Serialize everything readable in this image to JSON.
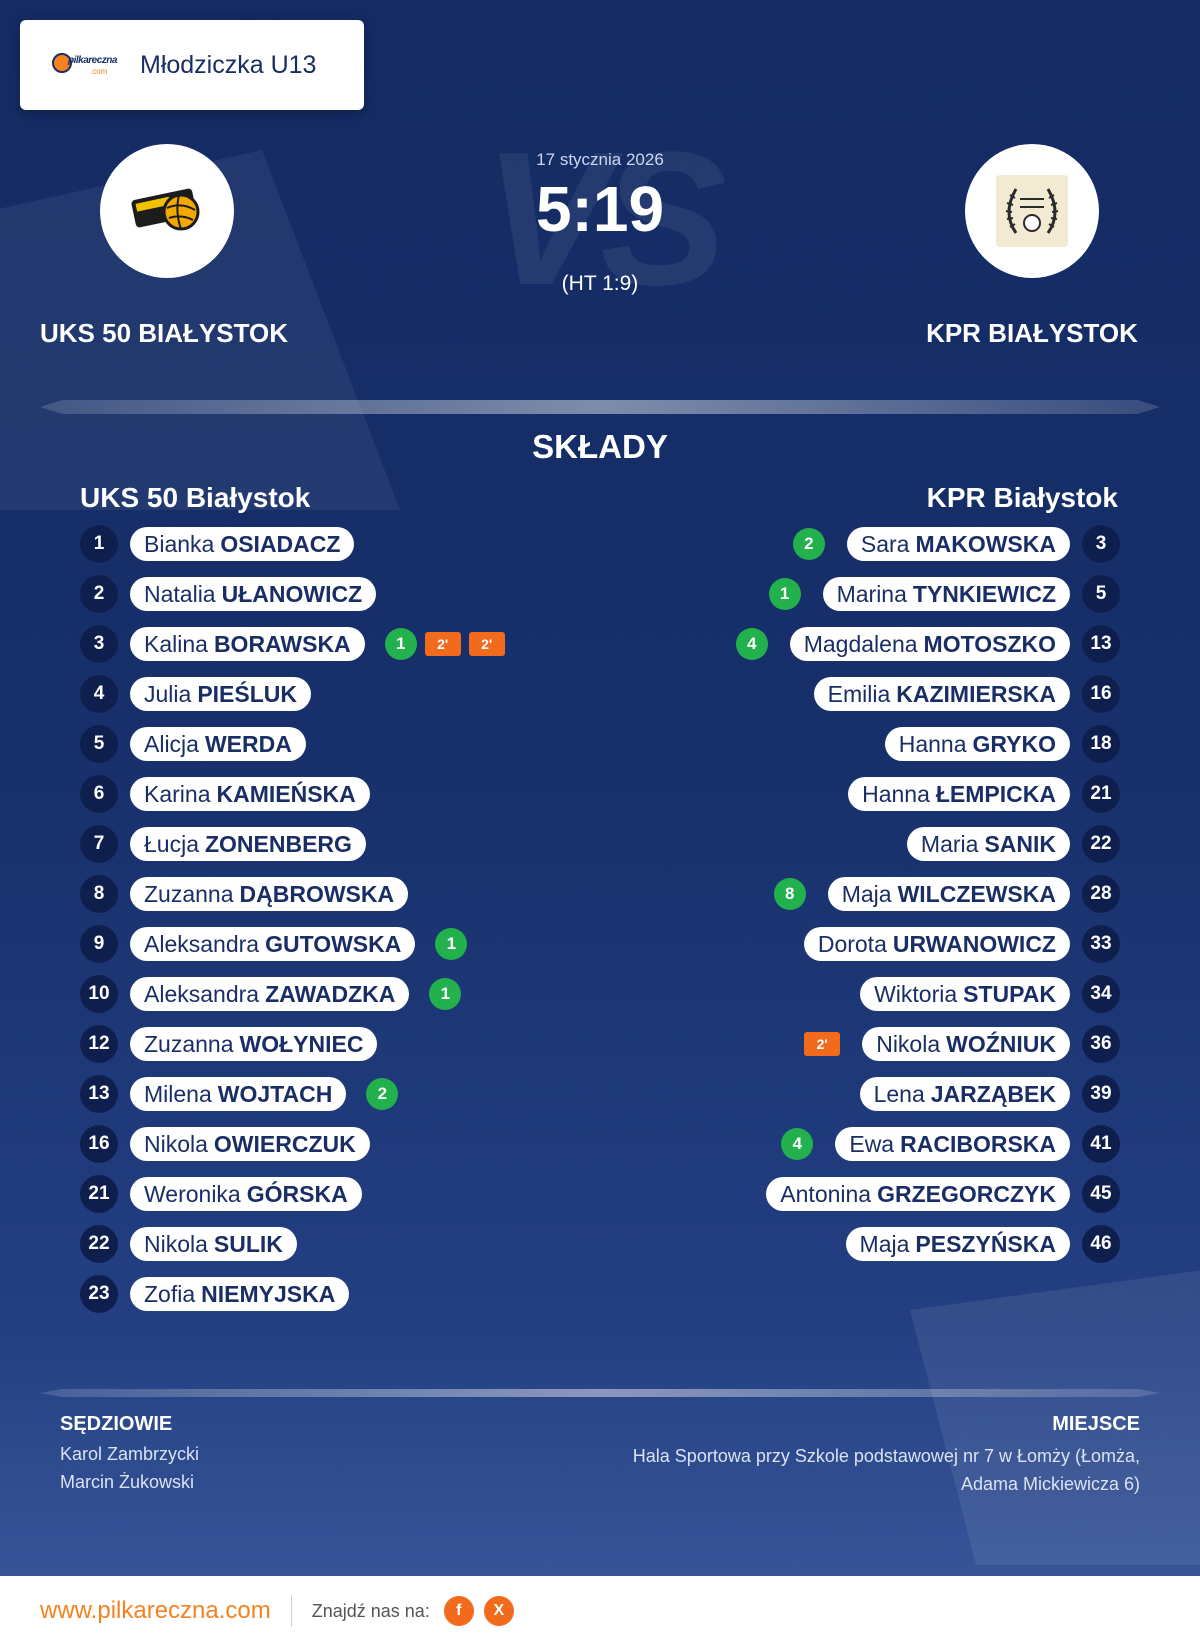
{
  "league": {
    "name": "Młodziczka U13",
    "logo_text": "pilkareczna",
    "logo_sub": ".com"
  },
  "match": {
    "date": "17 stycznia 2026",
    "score": "5:19",
    "halftime": "(HT 1:9)",
    "vs_text": "VS",
    "home_name": "UKS 50 BIAŁYSTOK",
    "away_name": "KPR BIAŁYSTOK"
  },
  "lineups": {
    "title": "SKŁADY",
    "home_title": "UKS 50 Białystok",
    "away_title": "KPR Białystok",
    "home": [
      {
        "number": "1",
        "first": "Bianka",
        "last": "OSIADACZ",
        "goals": "",
        "suspensions": []
      },
      {
        "number": "2",
        "first": "Natalia",
        "last": "UŁANOWICZ",
        "goals": "",
        "suspensions": []
      },
      {
        "number": "3",
        "first": "Kalina",
        "last": "BORAWSKA",
        "goals": "1",
        "suspensions": [
          "2'",
          "2'"
        ]
      },
      {
        "number": "4",
        "first": "Julia",
        "last": "PIEŚLUK",
        "goals": "",
        "suspensions": []
      },
      {
        "number": "5",
        "first": "Alicja",
        "last": "WERDA",
        "goals": "",
        "suspensions": []
      },
      {
        "number": "6",
        "first": "Karina",
        "last": "KAMIEŃSKA",
        "goals": "",
        "suspensions": []
      },
      {
        "number": "7",
        "first": "Łucja",
        "last": "ZONENBERG",
        "goals": "",
        "suspensions": []
      },
      {
        "number": "8",
        "first": "Zuzanna",
        "last": "DĄBROWSKA",
        "goals": "",
        "suspensions": []
      },
      {
        "number": "9",
        "first": "Aleksandra",
        "last": "GUTOWSKA",
        "goals": "1",
        "suspensions": []
      },
      {
        "number": "10",
        "first": "Aleksandra",
        "last": "ZAWADZKA",
        "goals": "1",
        "suspensions": []
      },
      {
        "number": "12",
        "first": "Zuzanna",
        "last": "WOŁYNIEC",
        "goals": "",
        "suspensions": []
      },
      {
        "number": "13",
        "first": "Milena",
        "last": "WOJTACH",
        "goals": "2",
        "suspensions": []
      },
      {
        "number": "16",
        "first": "Nikola",
        "last": "OWIERCZUK",
        "goals": "",
        "suspensions": []
      },
      {
        "number": "21",
        "first": "Weronika",
        "last": "GÓRSKA",
        "goals": "",
        "suspensions": []
      },
      {
        "number": "22",
        "first": "Nikola",
        "last": "SULIK",
        "goals": "",
        "suspensions": []
      },
      {
        "number": "23",
        "first": "Zofia",
        "last": "NIEMYJSKA",
        "goals": "",
        "suspensions": []
      }
    ],
    "away": [
      {
        "number": "3",
        "first": "Sara",
        "last": "MAKOWSKA",
        "goals": "2",
        "suspensions": []
      },
      {
        "number": "5",
        "first": "Marina",
        "last": "TYNKIEWICZ",
        "goals": "1",
        "suspensions": []
      },
      {
        "number": "13",
        "first": "Magdalena",
        "last": "MOTOSZKO",
        "goals": "4",
        "suspensions": []
      },
      {
        "number": "16",
        "first": "Emilia",
        "last": "KAZIMIERSKA",
        "goals": "",
        "suspensions": []
      },
      {
        "number": "18",
        "first": "Hanna",
        "last": "GRYKO",
        "goals": "",
        "suspensions": []
      },
      {
        "number": "21",
        "first": "Hanna",
        "last": "ŁEMPICKA",
        "goals": "",
        "suspensions": []
      },
      {
        "number": "22",
        "first": "Maria",
        "last": "SANIK",
        "goals": "",
        "suspensions": []
      },
      {
        "number": "28",
        "first": "Maja",
        "last": "WILCZEWSKA",
        "goals": "8",
        "suspensions": []
      },
      {
        "number": "33",
        "first": "Dorota",
        "last": "URWANOWICZ",
        "goals": "",
        "suspensions": []
      },
      {
        "number": "34",
        "first": "Wiktoria",
        "last": "STUPAK",
        "goals": "",
        "suspensions": []
      },
      {
        "number": "36",
        "first": "Nikola",
        "last": "WOŹNIUK",
        "goals": "",
        "suspensions": [
          "2'"
        ]
      },
      {
        "number": "39",
        "first": "Lena",
        "last": "JARZĄBEK",
        "goals": "",
        "suspensions": []
      },
      {
        "number": "41",
        "first": "Ewa",
        "last": "RACIBORSKA",
        "goals": "4",
        "suspensions": []
      },
      {
        "number": "45",
        "first": "Antonina",
        "last": "GRZEGORCZYK",
        "goals": "",
        "suspensions": []
      },
      {
        "number": "46",
        "first": "Maja",
        "last": "PESZYŃSKA",
        "goals": "",
        "suspensions": []
      }
    ]
  },
  "officials": {
    "referees_title": "SĘDZIOWIE",
    "referees": [
      "Karol Zambrzycki",
      "Marcin Żukowski"
    ],
    "venue_title": "MIEJSCE",
    "venue_line1": "Hala Sportowa przy Szkole podstawowej nr 7 w Łomży (Łomża,",
    "venue_line2": "Adama Mickiewicza 6)"
  },
  "footer": {
    "url": "www.pilkareczna.com",
    "find_us": "Znajdź nas na:",
    "social": [
      {
        "icon": "facebook-icon",
        "glyph": "f"
      },
      {
        "icon": "x-icon",
        "glyph": "X"
      }
    ]
  },
  "colors": {
    "background": "#17306b",
    "accent": "#f5821f",
    "goal": "#22b14c",
    "suspension": "#f26a1b",
    "number_badge": "#0f1f4d"
  }
}
